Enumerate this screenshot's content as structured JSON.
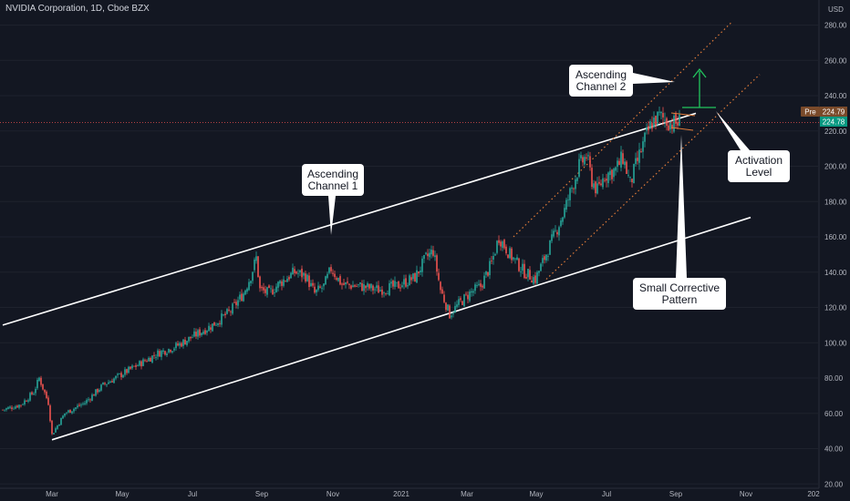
{
  "header": {
    "title": "NVIDIA Corporation, 1D, Cboe BZX"
  },
  "price_axis": {
    "currency": "USD",
    "pre_label": "Pre",
    "pre_value": "224.79",
    "last_value": "224.78"
  },
  "annotations": {
    "channel1": [
      "Ascending",
      "Channel 1"
    ],
    "channel2": [
      "Ascending",
      "Channel 2"
    ],
    "activation": [
      "Activation",
      "Level"
    ],
    "pattern": [
      "Small Corrective",
      "Pattern"
    ]
  },
  "colors": {
    "background": "#131722",
    "up": "#26a69a",
    "down": "#ef5350",
    "channel": "#ffffff",
    "dotted_channel": "#e07b39",
    "price_line": "#ef5350",
    "arrow": "#22c55e",
    "pre_badge": "#7a4a2a",
    "last_badge": "#089981"
  },
  "chart_data": {
    "type": "candlestick",
    "title": "NVIDIA Corporation, 1D, Cboe BZX",
    "ylabel": "USD",
    "ylim": [
      20,
      290
    ],
    "y_ticks": [
      20,
      40,
      60,
      80,
      100,
      120,
      140,
      160,
      180,
      200,
      220,
      240,
      260,
      280
    ],
    "x_tick_labels": [
      "Mar",
      "May",
      "Jul",
      "Sep",
      "Nov",
      "2021",
      "Mar",
      "May",
      "Jul",
      "Sep",
      "Nov",
      "202"
    ],
    "price_path": [
      {
        "x": 0,
        "y": 62
      },
      {
        "x": 10,
        "y": 65
      },
      {
        "x": 17,
        "y": 72
      },
      {
        "x": 20,
        "y": 80
      },
      {
        "x": 25,
        "y": 66
      },
      {
        "x": 27,
        "y": 48
      },
      {
        "x": 34,
        "y": 60
      },
      {
        "x": 45,
        "y": 66
      },
      {
        "x": 55,
        "y": 76
      },
      {
        "x": 65,
        "y": 82
      },
      {
        "x": 75,
        "y": 88
      },
      {
        "x": 85,
        "y": 94
      },
      {
        "x": 95,
        "y": 98
      },
      {
        "x": 105,
        "y": 104
      },
      {
        "x": 115,
        "y": 110
      },
      {
        "x": 125,
        "y": 118
      },
      {
        "x": 132,
        "y": 128
      },
      {
        "x": 136,
        "y": 138
      },
      {
        "x": 139,
        "y": 148
      },
      {
        "x": 141,
        "y": 130
      },
      {
        "x": 146,
        "y": 128
      },
      {
        "x": 152,
        "y": 134
      },
      {
        "x": 160,
        "y": 140
      },
      {
        "x": 166,
        "y": 138
      },
      {
        "x": 171,
        "y": 128
      },
      {
        "x": 176,
        "y": 132
      },
      {
        "x": 180,
        "y": 142
      },
      {
        "x": 186,
        "y": 133
      },
      {
        "x": 196,
        "y": 132
      },
      {
        "x": 206,
        "y": 130
      },
      {
        "x": 216,
        "y": 132
      },
      {
        "x": 226,
        "y": 137
      },
      {
        "x": 232,
        "y": 148
      },
      {
        "x": 236,
        "y": 152
      },
      {
        "x": 240,
        "y": 130
      },
      {
        "x": 245,
        "y": 116
      },
      {
        "x": 250,
        "y": 122
      },
      {
        "x": 256,
        "y": 128
      },
      {
        "x": 262,
        "y": 132
      },
      {
        "x": 268,
        "y": 145
      },
      {
        "x": 272,
        "y": 160
      },
      {
        "x": 278,
        "y": 150
      },
      {
        "x": 286,
        "y": 140
      },
      {
        "x": 292,
        "y": 136
      },
      {
        "x": 297,
        "y": 148
      },
      {
        "x": 302,
        "y": 160
      },
      {
        "x": 308,
        "y": 175
      },
      {
        "x": 312,
        "y": 188
      },
      {
        "x": 316,
        "y": 200
      },
      {
        "x": 320,
        "y": 206
      },
      {
        "x": 323,
        "y": 192
      },
      {
        "x": 326,
        "y": 186
      },
      {
        "x": 330,
        "y": 195
      },
      {
        "x": 336,
        "y": 198
      },
      {
        "x": 340,
        "y": 205
      },
      {
        "x": 344,
        "y": 190
      },
      {
        "x": 347,
        "y": 200
      },
      {
        "x": 352,
        "y": 215
      },
      {
        "x": 356,
        "y": 225
      },
      {
        "x": 360,
        "y": 228
      },
      {
        "x": 364,
        "y": 226
      },
      {
        "x": 368,
        "y": 224
      },
      {
        "x": 371,
        "y": 225
      }
    ],
    "channels": {
      "channel_1_upper": [
        [
          0,
          110
        ],
        [
          380,
          230
        ]
      ],
      "channel_1_lower": [
        [
          27,
          45
        ],
        [
          410,
          171
        ]
      ],
      "channel_2_upper": [
        [
          280,
          160
        ],
        [
          400,
          282
        ]
      ],
      "channel_2_lower": [
        [
          298,
          136
        ],
        [
          415,
          252
        ]
      ]
    },
    "levels": {
      "current_price": 224.79,
      "activation_level": 230
    }
  }
}
